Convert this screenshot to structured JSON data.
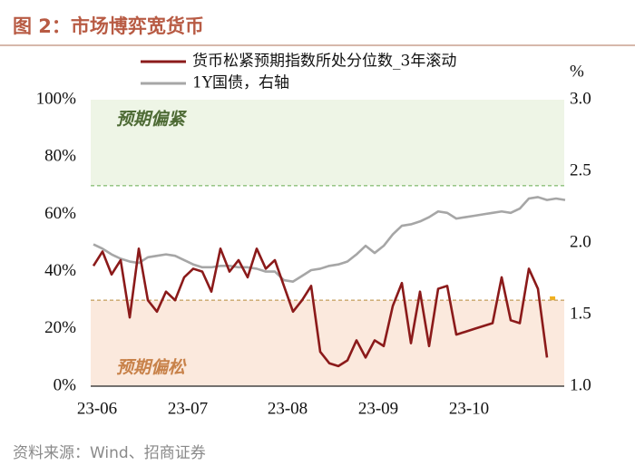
{
  "title": "图 2：市场博弈宽货币",
  "source": "资料来源：Wind、招商证券",
  "chart_data": {
    "type": "line",
    "y2_unit": "%",
    "categories": [
      "23-06",
      null,
      null,
      null,
      null,
      null,
      null,
      null,
      null,
      null,
      "23-07",
      null,
      null,
      null,
      null,
      null,
      null,
      null,
      null,
      null,
      null,
      "23-08",
      null,
      null,
      null,
      null,
      null,
      null,
      null,
      null,
      null,
      "23-09",
      null,
      null,
      null,
      null,
      null,
      null,
      null,
      null,
      null,
      "23-10",
      null,
      null,
      null,
      null,
      null,
      null,
      null,
      null,
      null,
      null,
      null
    ],
    "series": [
      {
        "name": "货币松紧预期指数所处分位数_3年滚动",
        "color": "#8b1a1a",
        "axis": "y",
        "values": [
          42,
          47,
          39,
          44,
          24,
          48,
          30,
          26,
          33,
          30,
          38,
          41,
          40,
          33,
          48,
          40,
          44,
          38,
          48,
          41,
          44,
          35,
          26,
          30,
          35,
          12,
          8,
          7,
          9,
          16,
          10,
          16,
          14,
          28,
          36,
          15,
          33,
          14,
          34,
          35,
          18,
          19,
          20,
          21,
          22,
          38,
          23,
          22,
          41,
          34,
          10,
          null,
          null
        ]
      },
      {
        "name": "1Y国债，右轴",
        "color": "#a6a6a6",
        "axis": "y2",
        "values": [
          1.99,
          1.96,
          1.92,
          1.89,
          1.87,
          1.86,
          1.9,
          1.91,
          1.92,
          1.91,
          1.88,
          1.85,
          1.83,
          1.83,
          1.84,
          1.84,
          1.83,
          1.83,
          1.82,
          1.8,
          1.8,
          1.74,
          1.73,
          1.77,
          1.81,
          1.82,
          1.84,
          1.85,
          1.87,
          1.92,
          1.98,
          1.93,
          1.98,
          2.06,
          2.12,
          2.13,
          2.15,
          2.18,
          2.22,
          2.21,
          2.17,
          2.18,
          2.19,
          2.2,
          2.21,
          2.22,
          2.21,
          2.24,
          2.31,
          2.32,
          2.3,
          2.31,
          2.3
        ]
      }
    ],
    "bands": [
      {
        "from": 70,
        "to": 100,
        "label": "预期偏紧",
        "color": "#eef5e6",
        "line_color": "#8cc07a",
        "text_color": "#4e6b35"
      },
      {
        "from": 0,
        "to": 30,
        "label": "预期偏松",
        "color": "#fbe9dd",
        "line_color": "#c9a56a",
        "text_color": "#c8824a"
      }
    ],
    "ylim": [
      0,
      100
    ],
    "yticks": [
      {
        "value": 0,
        "label": "0%"
      },
      {
        "value": 20,
        "label": "20%"
      },
      {
        "value": 40,
        "label": "40%"
      },
      {
        "value": 60,
        "label": "60%"
      },
      {
        "value": 80,
        "label": "80%"
      },
      {
        "value": 100,
        "label": "100%"
      }
    ],
    "y2lim": [
      1,
      3
    ],
    "y2ticks": [
      {
        "value": 1,
        "label": "1.0"
      },
      {
        "value": 1.5,
        "label": "1.5"
      },
      {
        "value": 2,
        "label": "2.0"
      },
      {
        "value": 2.5,
        "label": "2.5"
      },
      {
        "value": 3,
        "label": "3.0"
      }
    ]
  }
}
